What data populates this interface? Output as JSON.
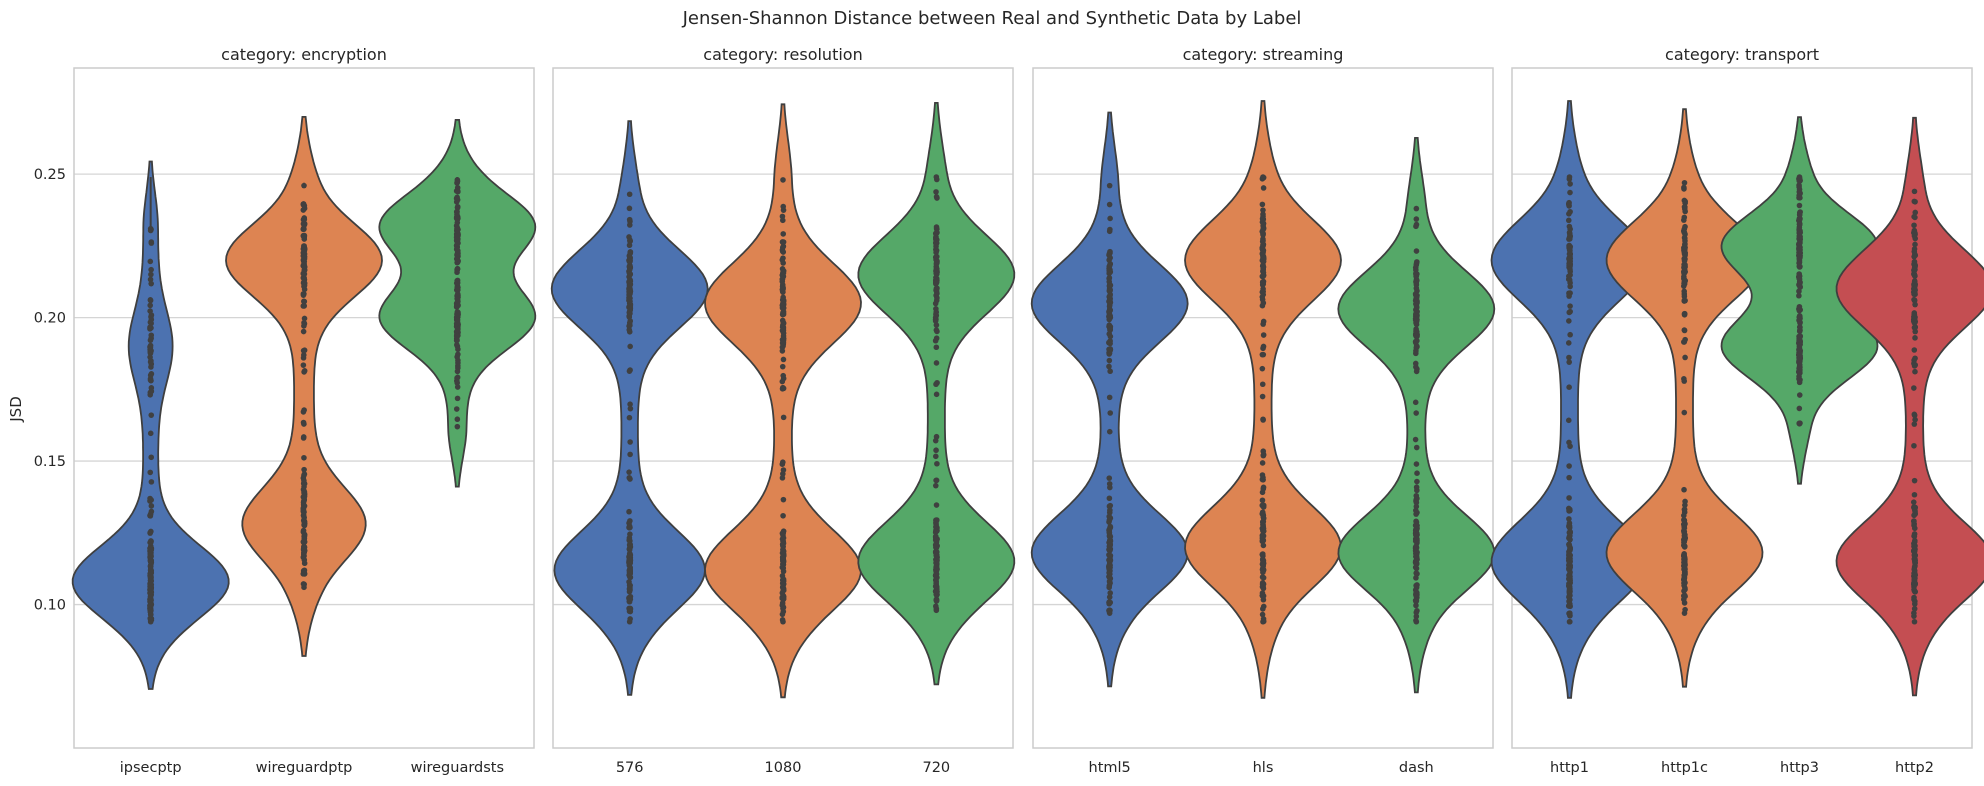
{
  "chart_data": {
    "type": "violin",
    "title": "Jensen-Shannon Distance between Real and Synthetic Data by Label",
    "ylabel": "JSD",
    "ylim": [
      0.05,
      0.287
    ],
    "yticks": [
      0.1,
      0.15,
      0.2,
      0.25
    ],
    "grid": true,
    "shared_y": true,
    "colors": {
      "blue": "#4C72B0",
      "orange": "#DD8452",
      "green": "#55A868",
      "red": "#C44E52",
      "outline": "#3f3f3f",
      "grid": "#d5d5d5"
    },
    "panels": [
      {
        "title": "category: encryption",
        "categories": [
          "ipsecptp",
          "wireguardptp",
          "wireguardsts"
        ],
        "violins": [
          {
            "color": "blue",
            "min": 0.094,
            "max": 0.231,
            "whisker_max": 0.249,
            "modes": [
              [
                0.108,
                0.58
              ],
              [
                0.19,
                0.12
              ]
            ]
          },
          {
            "color": "orange",
            "min": 0.106,
            "max": 0.246,
            "whisker_max": 0.247,
            "modes": [
              [
                0.128,
                0.32
              ],
              [
                0.22,
                0.42
              ]
            ]
          },
          {
            "color": "green",
            "min": 0.162,
            "max": 0.248,
            "whisker_max": 0.249,
            "modes": [
              [
                0.2,
                0.45
              ],
              [
                0.232,
                0.45
              ]
            ]
          }
        ]
      },
      {
        "title": "category: resolution",
        "categories": [
          "576",
          "1080",
          "720"
        ],
        "violins": [
          {
            "color": "blue",
            "min": 0.094,
            "max": 0.243,
            "modes": [
              [
                0.112,
                0.5
              ],
              [
                0.21,
                0.52
              ]
            ]
          },
          {
            "color": "orange",
            "min": 0.094,
            "max": 0.248,
            "modes": [
              [
                0.112,
                0.5
              ],
              [
                0.205,
                0.5
              ]
            ]
          },
          {
            "color": "green",
            "min": 0.098,
            "max": 0.249,
            "modes": [
              [
                0.115,
                0.5
              ],
              [
                0.215,
                0.5
              ]
            ]
          }
        ]
      },
      {
        "title": "category: streaming",
        "categories": [
          "html5",
          "hls",
          "dash"
        ],
        "violins": [
          {
            "color": "blue",
            "min": 0.097,
            "max": 0.246,
            "modes": [
              [
                0.118,
                0.5
              ],
              [
                0.205,
                0.5
              ]
            ]
          },
          {
            "color": "orange",
            "min": 0.094,
            "max": 0.249,
            "modes": [
              [
                0.12,
                0.5
              ],
              [
                0.22,
                0.5
              ]
            ]
          },
          {
            "color": "green",
            "min": 0.094,
            "max": 0.238,
            "modes": [
              [
                0.118,
                0.5
              ],
              [
                0.203,
                0.5
              ]
            ]
          }
        ]
      },
      {
        "title": "category: transport",
        "categories": [
          "http1",
          "http1c",
          "http3",
          "http2"
        ],
        "violins": [
          {
            "color": "blue",
            "min": 0.094,
            "max": 0.249,
            "modes": [
              [
                0.115,
                0.5
              ],
              [
                0.22,
                0.5
              ]
            ]
          },
          {
            "color": "orange",
            "min": 0.097,
            "max": 0.247,
            "modes": [
              [
                0.118,
                0.5
              ],
              [
                0.22,
                0.5
              ]
            ]
          },
          {
            "color": "green",
            "min": 0.163,
            "max": 0.249,
            "modes": [
              [
                0.19,
                0.45
              ],
              [
                0.225,
                0.45
              ]
            ]
          },
          {
            "color": "red",
            "min": 0.094,
            "max": 0.244,
            "modes": [
              [
                0.115,
                0.5
              ],
              [
                0.21,
                0.5
              ]
            ]
          }
        ]
      }
    ]
  }
}
